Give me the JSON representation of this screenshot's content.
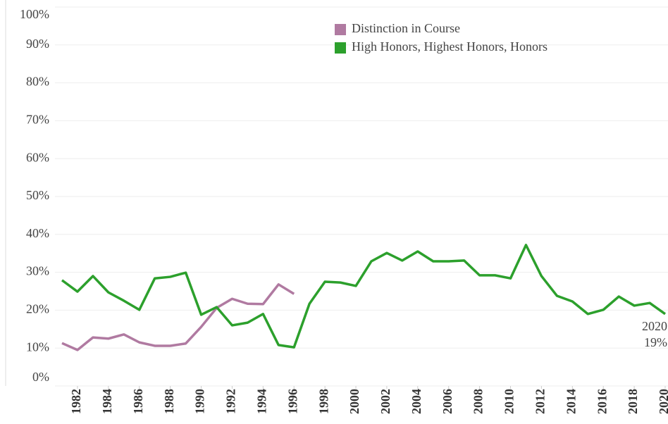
{
  "chart_data": {
    "type": "line",
    "x": [
      1981,
      1982,
      1983,
      1984,
      1985,
      1986,
      1987,
      1988,
      1989,
      1990,
      1991,
      1992,
      1993,
      1994,
      1995,
      1996,
      1997,
      1998,
      1999,
      2000,
      2001,
      2002,
      2003,
      2004,
      2005,
      2006,
      2007,
      2008,
      2009,
      2010,
      2011,
      2012,
      2013,
      2014,
      2015,
      2016,
      2017,
      2018,
      2019,
      2020
    ],
    "series": [
      {
        "name": "Distinction in Course",
        "color": "#b07aa1",
        "values": [
          11.3,
          9.5,
          12.8,
          12.5,
          13.6,
          11.5,
          10.6,
          10.6,
          11.2,
          15.6,
          20.6,
          23.0,
          21.7,
          21.6,
          26.8,
          24.3,
          null,
          null,
          null,
          null,
          null,
          null,
          null,
          null,
          null,
          null,
          null,
          null,
          null,
          null,
          null,
          null,
          null,
          null,
          null,
          null,
          null,
          null,
          null,
          null
        ]
      },
      {
        "name": "High Honors, Highest Honors, Honors",
        "color": "#2ca02c",
        "values": [
          27.9,
          24.9,
          29.0,
          24.7,
          22.5,
          20.1,
          28.4,
          28.8,
          29.9,
          18.8,
          20.8,
          16.0,
          16.7,
          19.0,
          10.8,
          10.2,
          21.7,
          27.5,
          27.3,
          26.4,
          32.9,
          35.1,
          33.1,
          35.5,
          32.9,
          32.9,
          33.1,
          29.2,
          29.2,
          28.4,
          37.2,
          29.0,
          23.8,
          22.3,
          19.0,
          20.1,
          23.6,
          21.2,
          21.9,
          19.0
        ]
      }
    ],
    "xlim": [
      1981,
      2020
    ],
    "xticks": [
      1982,
      1984,
      1986,
      1988,
      1990,
      1992,
      1994,
      1996,
      1998,
      2000,
      2002,
      2004,
      2006,
      2008,
      2010,
      2012,
      2014,
      2016,
      2018,
      2020
    ],
    "ylim": [
      0,
      100
    ],
    "yticks": [
      {
        "value": 0,
        "label": "0%"
      },
      {
        "value": 10,
        "label": "10%"
      },
      {
        "value": 20,
        "label": "20%"
      },
      {
        "value": 30,
        "label": "30%"
      },
      {
        "value": 40,
        "label": "40%"
      },
      {
        "value": 50,
        "label": "50%"
      },
      {
        "value": 60,
        "label": "60%"
      },
      {
        "value": 70,
        "label": "70%"
      },
      {
        "value": 80,
        "label": "80%"
      },
      {
        "value": 90,
        "label": "90%"
      },
      {
        "value": 100,
        "label": "100%"
      }
    ],
    "grid": true,
    "legend": "top",
    "annotations": [
      "2020",
      "19%"
    ]
  }
}
